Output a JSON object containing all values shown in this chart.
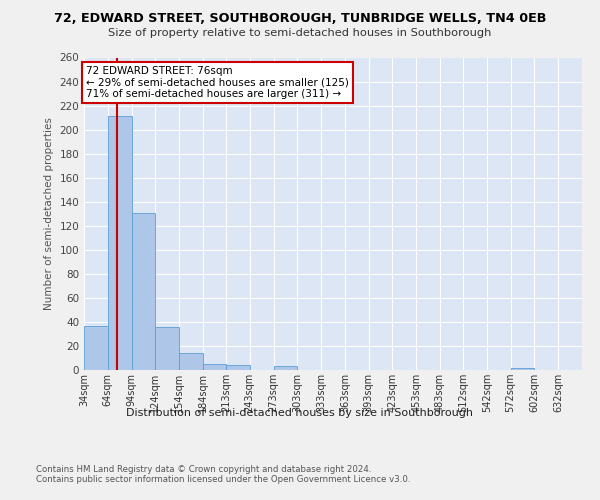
{
  "title1": "72, EDWARD STREET, SOUTHBOROUGH, TUNBRIDGE WELLS, TN4 0EB",
  "title2": "Size of property relative to semi-detached houses in Southborough",
  "xlabel": "Distribution of semi-detached houses by size in Southborough",
  "ylabel": "Number of semi-detached properties",
  "footer": "Contains HM Land Registry data © Crown copyright and database right 2024.\nContains public sector information licensed under the Open Government Licence v3.0.",
  "bin_labels": [
    "34sqm",
    "64sqm",
    "94sqm",
    "124sqm",
    "154sqm",
    "184sqm",
    "213sqm",
    "243sqm",
    "273sqm",
    "303sqm",
    "333sqm",
    "363sqm",
    "393sqm",
    "423sqm",
    "453sqm",
    "483sqm",
    "512sqm",
    "542sqm",
    "572sqm",
    "602sqm",
    "632sqm"
  ],
  "bar_values": [
    37,
    211,
    131,
    36,
    14,
    5,
    4,
    0,
    3,
    0,
    0,
    0,
    0,
    0,
    0,
    0,
    0,
    0,
    2,
    0,
    0
  ],
  "bar_color": "#aec6e8",
  "bar_edge_color": "#5a9fd4",
  "property_line_x": 76,
  "vline_color": "#cc0000",
  "annotation_text": "72 EDWARD STREET: 76sqm\n← 29% of semi-detached houses are smaller (125)\n71% of semi-detached houses are larger (311) →",
  "annotation_box_color": "#ffffff",
  "annotation_border_color": "#cc0000",
  "ylim": [
    0,
    260
  ],
  "yticks": [
    0,
    20,
    40,
    60,
    80,
    100,
    120,
    140,
    160,
    180,
    200,
    220,
    240,
    260
  ],
  "bin_edges": [
    34,
    64,
    94,
    124,
    154,
    184,
    213,
    243,
    273,
    303,
    333,
    363,
    393,
    423,
    453,
    483,
    512,
    542,
    572,
    602,
    632,
    662
  ],
  "figure_bg": "#f0f0f0",
  "plot_bg_color": "#dce6f5"
}
